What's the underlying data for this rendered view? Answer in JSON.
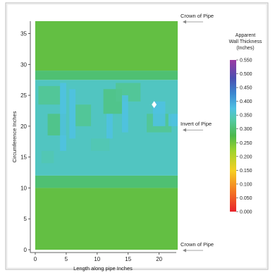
{
  "chart_data": {
    "type": "heatmap",
    "title": "",
    "xlabel": "Length along pipe Inches",
    "ylabel": "Circumference Inches",
    "xlim": [
      0,
      23
    ],
    "ylim": [
      0,
      37
    ],
    "x_ticks": [
      "0",
      "5",
      "10",
      "15",
      "20"
    ],
    "y_ticks": [
      "0",
      "5",
      "10",
      "15",
      "20",
      "25",
      "30",
      "35"
    ],
    "annotations": [
      {
        "text": "Crown of Pipe",
        "y": 37
      },
      {
        "text": "Invert of Pipe",
        "y": 19.5
      },
      {
        "text": "Crown of Pipe",
        "y": 0
      }
    ],
    "colorbar": {
      "title": [
        "Apparent",
        "Wall Thickness",
        "(Inches)"
      ],
      "min": 0,
      "max": 0.55,
      "tick_labels": [
        "0.000",
        "0.050",
        "0.100",
        "0.150",
        "0.200",
        "0.250",
        "0.300",
        "0.350",
        "0.400",
        "0.450",
        "0.500",
        "0.550"
      ]
    },
    "bands": [
      {
        "y": [
          0,
          10
        ],
        "value": 0.26
      },
      {
        "y": [
          10,
          12
        ],
        "value": 0.3
      },
      {
        "y": [
          12,
          27.5
        ],
        "value": 0.35
      },
      {
        "y": [
          27.5,
          29
        ],
        "value": 0.3
      },
      {
        "y": [
          29,
          37
        ],
        "value": 0.26
      }
    ],
    "patches": [
      {
        "x": [
          0.5,
          4
        ],
        "y": [
          23.5,
          26.5
        ],
        "value": 0.32
      },
      {
        "x": [
          2,
          5
        ],
        "y": [
          18.5,
          22
        ],
        "value": 0.31
      },
      {
        "x": [
          6.5,
          9
        ],
        "y": [
          20,
          23.5
        ],
        "value": 0.32
      },
      {
        "x": [
          11,
          14
        ],
        "y": [
          22,
          26
        ],
        "value": 0.31
      },
      {
        "x": [
          13,
          17
        ],
        "y": [
          24,
          27
        ],
        "value": 0.32
      },
      {
        "x": [
          18,
          22
        ],
        "y": [
          19,
          22
        ],
        "value": 0.32
      },
      {
        "x": [
          4,
          5
        ],
        "y": [
          16,
          27
        ],
        "value": 0.37
      },
      {
        "x": [
          5.5,
          6.5
        ],
        "y": [
          18,
          26
        ],
        "value": 0.37
      },
      {
        "x": [
          11.5,
          12.5
        ],
        "y": [
          18,
          22
        ],
        "value": 0.37
      },
      {
        "x": [
          14,
          15
        ],
        "y": [
          19,
          25
        ],
        "value": 0.37
      },
      {
        "x": [
          19,
          21
        ],
        "y": [
          20,
          24
        ],
        "value": 0.37
      },
      {
        "x": [
          21.5,
          23
        ],
        "y": [
          20,
          22
        ],
        "value": 0.37
      },
      {
        "x": [
          1,
          3
        ],
        "y": [
          14,
          16
        ],
        "value": 0.34
      },
      {
        "x": [
          9,
          12
        ],
        "y": [
          16,
          18
        ],
        "value": 0.34
      }
    ],
    "marker": {
      "x": 19.2,
      "y": 23.5,
      "value": 0.55
    }
  }
}
